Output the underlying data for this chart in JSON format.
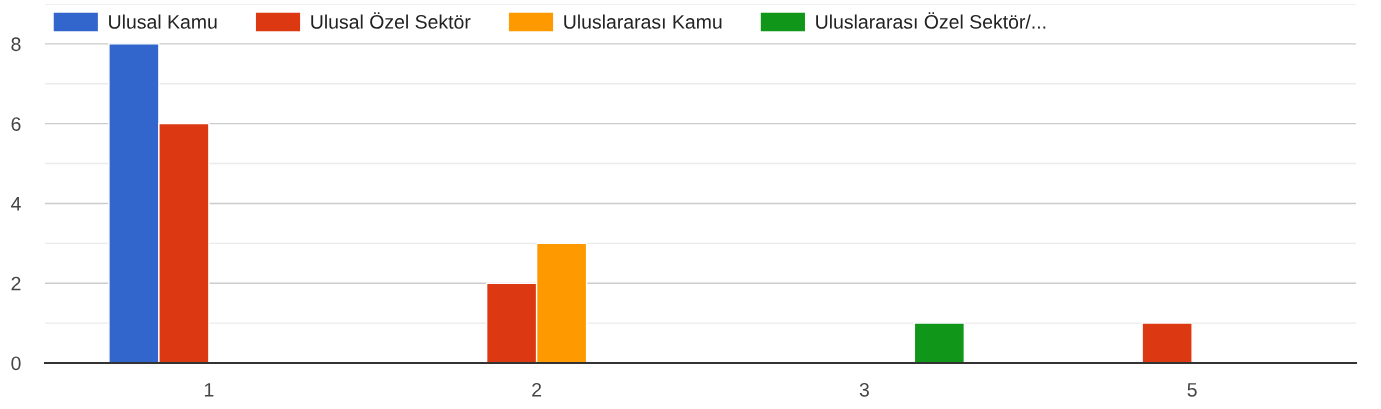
{
  "chart_data": {
    "type": "bar",
    "categories": [
      "1",
      "2",
      "3",
      "5"
    ],
    "series": [
      {
        "name": "Ulusal Kamu",
        "color": "#3366cc",
        "values": [
          8,
          null,
          null,
          null
        ]
      },
      {
        "name": "Ulusal Özel Sektör",
        "color": "#dc3912",
        "values": [
          6,
          2,
          null,
          1
        ]
      },
      {
        "name": "Uluslararası Kamu",
        "color": "#ff9900",
        "values": [
          null,
          3,
          null,
          null
        ]
      },
      {
        "name": "Uluslararası Özel Sektör/...",
        "color": "#109618",
        "values": [
          null,
          null,
          1,
          null
        ]
      }
    ],
    "ylim": [
      0,
      9
    ],
    "yticks": [
      0,
      {
        "value": 1,
        "label": null
      },
      2,
      {
        "value": 3,
        "label": null
      },
      4,
      {
        "value": 5,
        "label": null
      },
      6,
      {
        "value": 7,
        "label": null
      },
      8,
      {
        "value": 9,
        "label": null
      }
    ],
    "grid": "y",
    "legend": "top left"
  }
}
